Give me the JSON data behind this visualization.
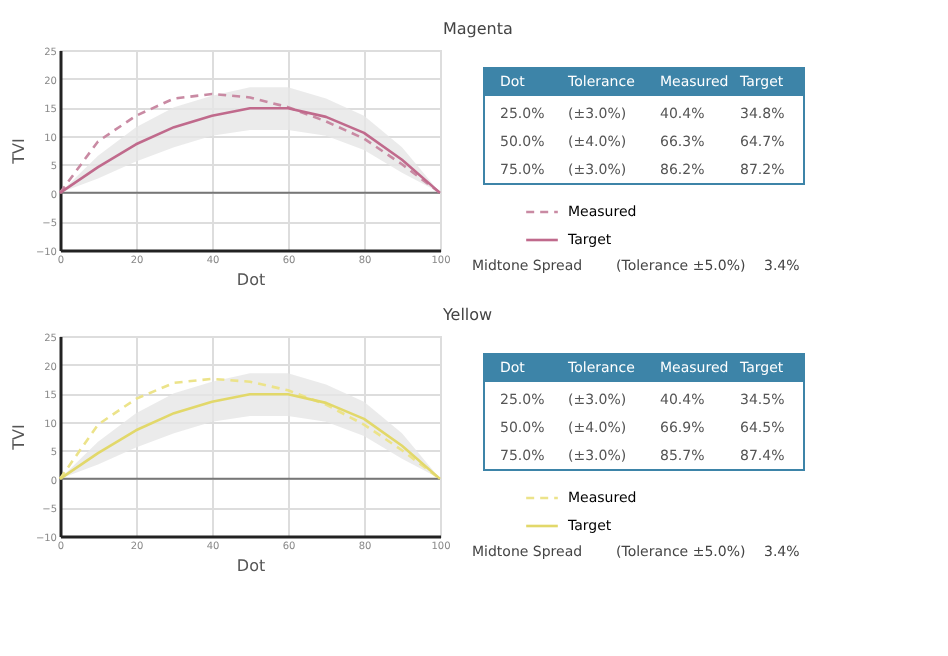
{
  "chart_data": [
    {
      "type": "line",
      "title": "Magenta",
      "xlabel": "Dot",
      "ylabel": "TVI",
      "x": [
        0,
        10,
        20,
        30,
        40,
        50,
        60,
        70,
        80,
        90,
        100
      ],
      "xlim": [
        0,
        100
      ],
      "xticks": [
        0,
        20,
        40,
        60,
        80,
        100
      ],
      "ylim": [
        -10,
        25
      ],
      "yticks": [
        -10,
        -5,
        0,
        5,
        10,
        15,
        20,
        25
      ],
      "grid": true,
      "legend": "right",
      "ref_lines": [
        {
          "axis": "y",
          "value": 0,
          "color": "#777777"
        }
      ],
      "series": [
        {
          "name": "Measured",
          "color": "#c98aa3",
          "line_style": "dashed",
          "values": [
            0,
            9,
            13.5,
            16.5,
            17.3,
            16.7,
            15,
            12.5,
            9.5,
            5,
            0
          ]
        },
        {
          "name": "Target",
          "color": "#c06a8c",
          "line_style": "solid",
          "values": [
            0,
            4.5,
            8.5,
            11.5,
            13.5,
            14.8,
            14.8,
            13.3,
            10.5,
            5.8,
            0
          ],
          "lower": [
            0,
            2.5,
            5.5,
            8,
            10,
            11,
            11,
            10,
            7.5,
            3.5,
            0
          ],
          "upper": [
            0,
            6.5,
            11.5,
            15,
            17,
            18.5,
            18.5,
            16.5,
            13.5,
            8,
            0
          ]
        }
      ],
      "annotations": [
        "Dot",
        "Tolerance",
        "Measured",
        "Target",
        "25.0%",
        "(±3.0%)",
        "40.4%",
        "34.8%",
        "50.0%",
        "(±4.0%)",
        "66.3%",
        "64.7%",
        "75.0%",
        "(±3.0%)",
        "86.2%",
        "87.2%",
        "Midtone Spread",
        "(Tolerance ±5.0%)",
        "3.4%"
      ]
    },
    {
      "type": "line",
      "title": "Yellow",
      "xlabel": "Dot",
      "ylabel": "TVI",
      "x": [
        0,
        10,
        20,
        30,
        40,
        50,
        60,
        70,
        80,
        90,
        100
      ],
      "xlim": [
        0,
        100
      ],
      "xticks": [
        0,
        20,
        40,
        60,
        80,
        100
      ],
      "ylim": [
        -10,
        25
      ],
      "yticks": [
        -10,
        -5,
        0,
        5,
        10,
        15,
        20,
        25
      ],
      "grid": true,
      "legend": "right",
      "ref_lines": [
        {
          "axis": "y",
          "value": 0,
          "color": "#777777"
        }
      ],
      "series": [
        {
          "name": "Measured",
          "color": "#ece38a",
          "line_style": "dashed",
          "values": [
            0,
            9.5,
            14,
            16.8,
            17.5,
            17,
            15.5,
            13,
            9.5,
            5,
            0
          ]
        },
        {
          "name": "Target",
          "color": "#e2d86a",
          "line_style": "solid",
          "values": [
            0,
            4.5,
            8.5,
            11.5,
            13.5,
            14.8,
            14.8,
            13.3,
            10.5,
            5.8,
            0
          ],
          "lower": [
            0,
            2.5,
            5.5,
            8,
            10,
            11,
            11,
            10,
            7.5,
            3.5,
            0
          ],
          "upper": [
            0,
            6.5,
            11.5,
            15,
            17,
            18.5,
            18.5,
            16.5,
            13.5,
            8,
            0
          ]
        }
      ],
      "annotations": [
        "Dot",
        "Tolerance",
        "Measured",
        "Target",
        "25.0%",
        "(±3.0%)",
        "40.4%",
        "34.5%",
        "50.0%",
        "(±4.0%)",
        "66.9%",
        "64.5%",
        "75.0%",
        "(±3.0%)",
        "85.7%",
        "87.4%",
        "Midtone Spread",
        "(Tolerance ±5.0%)",
        "3.4%"
      ]
    }
  ]
}
